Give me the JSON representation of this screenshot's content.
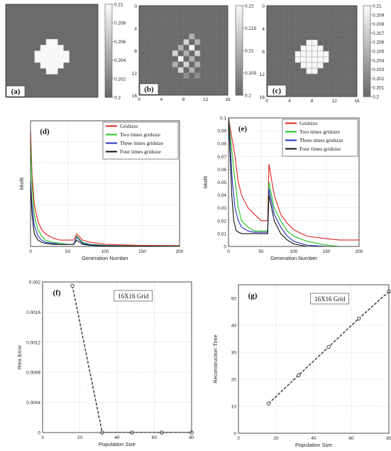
{
  "chart_data": [
    {
      "panel": "(a)",
      "type": "heatmap",
      "cells": 16,
      "xticks": [],
      "yticks": [],
      "colorbar_ticks": [
        "0.21",
        "0.208",
        "0.206",
        "0.204",
        "0.202",
        "0.2"
      ],
      "background_value": 0.2,
      "anomaly_value": 0.21,
      "anomaly_cells": [
        [
          6,
          7
        ],
        [
          6,
          8
        ],
        [
          7,
          6
        ],
        [
          7,
          7
        ],
        [
          7,
          8
        ],
        [
          7,
          9
        ],
        [
          8,
          5
        ],
        [
          8,
          6
        ],
        [
          8,
          7
        ],
        [
          8,
          8
        ],
        [
          8,
          9
        ],
        [
          8,
          10
        ],
        [
          9,
          5
        ],
        [
          9,
          6
        ],
        [
          9,
          7
        ],
        [
          9,
          8
        ],
        [
          9,
          9
        ],
        [
          9,
          10
        ],
        [
          10,
          6
        ],
        [
          10,
          7
        ],
        [
          10,
          8
        ],
        [
          10,
          9
        ],
        [
          11,
          7
        ],
        [
          11,
          8
        ]
      ]
    },
    {
      "panel": "(b)",
      "type": "heatmap",
      "cells": 16,
      "xticks": [
        "0",
        "4",
        "8",
        "12",
        "16"
      ],
      "yticks": [
        "0",
        "4",
        "8",
        "12",
        "16"
      ],
      "colorbar_ticks": [
        "0.22",
        "0.215",
        "0.21",
        "0.205",
        "0.2"
      ],
      "background_value": 0.2,
      "anomaly_cells": [
        [
          5,
          9,
          0.21
        ],
        [
          6,
          8,
          0.215
        ],
        [
          6,
          10,
          0.21
        ],
        [
          7,
          7,
          0.21
        ],
        [
          7,
          9,
          0.22
        ],
        [
          8,
          6,
          0.215
        ],
        [
          8,
          8,
          0.21
        ],
        [
          8,
          10,
          0.215
        ],
        [
          9,
          7,
          0.22
        ],
        [
          9,
          9,
          0.21
        ],
        [
          10,
          6,
          0.21
        ],
        [
          10,
          8,
          0.215
        ],
        [
          10,
          10,
          0.21
        ],
        [
          11,
          7,
          0.215
        ],
        [
          11,
          9,
          0.21
        ],
        [
          12,
          8,
          0.205
        ],
        [
          12,
          10,
          0.205
        ]
      ]
    },
    {
      "panel": "(c)",
      "type": "heatmap",
      "cells": 16,
      "xticks": [
        "0",
        "4",
        "8",
        "12",
        "16"
      ],
      "yticks": [
        "0",
        "4",
        "8",
        "12",
        "16"
      ],
      "colorbar_ticks": [
        "0.21",
        "0.209",
        "0.208",
        "0.207",
        "0.206",
        "0.205",
        "0.204",
        "0.203",
        "0.202",
        "0.201",
        "0.2"
      ],
      "background_value": 0.2,
      "anomaly_value": 0.21,
      "anomaly_cells": [
        [
          6,
          7
        ],
        [
          6,
          8
        ],
        [
          7,
          6
        ],
        [
          7,
          7
        ],
        [
          7,
          8
        ],
        [
          7,
          9
        ],
        [
          8,
          5
        ],
        [
          8,
          6
        ],
        [
          8,
          7
        ],
        [
          8,
          8
        ],
        [
          8,
          9
        ],
        [
          8,
          10
        ],
        [
          9,
          5
        ],
        [
          9,
          6
        ],
        [
          9,
          7
        ],
        [
          9,
          8
        ],
        [
          9,
          9
        ],
        [
          9,
          10
        ],
        [
          10,
          6
        ],
        [
          10,
          7
        ],
        [
          10,
          8
        ],
        [
          10,
          9
        ],
        [
          11,
          7
        ],
        [
          11,
          8
        ]
      ]
    },
    {
      "panel": "(d)",
      "type": "line",
      "xlabel": "Generation Number",
      "ylabel": "Misfit",
      "xlim": [
        0,
        200
      ],
      "ylim": [
        0,
        0.6
      ],
      "xticks": [
        "0",
        "50",
        "100",
        "150",
        "200"
      ],
      "yticks": [],
      "grid": true,
      "legend_position": "top-right",
      "series": [
        {
          "name": "Gridsize",
          "color": "#e02020",
          "x": [
            0,
            2,
            5,
            10,
            15,
            20,
            30,
            40,
            50,
            58,
            62,
            70,
            80,
            100,
            150,
            200
          ],
          "y": [
            0.55,
            0.35,
            0.2,
            0.12,
            0.08,
            0.06,
            0.04,
            0.03,
            0.03,
            0.03,
            0.06,
            0.03,
            0.02,
            0.01,
            0.005,
            0.004
          ]
        },
        {
          "name": "Two times gridsize",
          "color": "#20c020",
          "x": [
            0,
            2,
            5,
            10,
            15,
            20,
            30,
            40,
            50,
            58,
            62,
            70,
            80,
            100,
            150,
            200
          ],
          "y": [
            0.5,
            0.3,
            0.15,
            0.08,
            0.05,
            0.03,
            0.02,
            0.015,
            0.01,
            0.01,
            0.05,
            0.02,
            0.01,
            0.005,
            0.002,
            0.001
          ]
        },
        {
          "name": "Three times gridsize",
          "color": "#2030c0",
          "x": [
            0,
            2,
            5,
            10,
            15,
            20,
            30,
            40,
            50,
            58,
            62,
            70,
            80,
            100,
            150,
            200
          ],
          "y": [
            0.32,
            0.2,
            0.1,
            0.05,
            0.03,
            0.02,
            0.015,
            0.01,
            0.01,
            0.01,
            0.045,
            0.015,
            0.008,
            0.003,
            0.001,
            0.0
          ]
        },
        {
          "name": "Four times gridsize",
          "color": "#111111",
          "x": [
            0,
            2,
            5,
            10,
            15,
            20,
            30,
            40,
            50,
            58,
            62,
            70,
            80,
            100,
            150,
            200
          ],
          "y": [
            0.3,
            0.15,
            0.06,
            0.03,
            0.02,
            0.015,
            0.01,
            0.01,
            0.01,
            0.01,
            0.03,
            0.01,
            0.005,
            0.002,
            0.001,
            0.0
          ]
        }
      ]
    },
    {
      "panel": "(e)",
      "type": "line",
      "xlabel": "Generation Number",
      "ylabel": "Misfit",
      "xlim": [
        0,
        200
      ],
      "ylim": [
        0,
        0.1
      ],
      "xticks": [
        "0",
        "50",
        "100",
        "150",
        "200"
      ],
      "yticks": [
        "0",
        "0.01",
        "0.02",
        "0.03",
        "0.04",
        "0.05",
        "0.06",
        "0.07",
        "0.08",
        "0.09",
        "0.1"
      ],
      "grid": true,
      "legend_position": "top-right",
      "series": [
        {
          "name": "Gridsize",
          "color": "#e02020",
          "x": [
            0,
            10,
            15,
            20,
            30,
            40,
            50,
            58,
            60,
            62,
            70,
            80,
            90,
            100,
            120,
            150,
            170,
            200
          ],
          "y": [
            0.1,
            0.07,
            0.05,
            0.04,
            0.03,
            0.025,
            0.02,
            0.02,
            0.02,
            0.064,
            0.04,
            0.025,
            0.018,
            0.013,
            0.008,
            0.006,
            0.005,
            0.005
          ]
        },
        {
          "name": "Two times gridsize",
          "color": "#20c020",
          "x": [
            0,
            8,
            15,
            20,
            30,
            40,
            50,
            58,
            60,
            62,
            70,
            80,
            90,
            100,
            120,
            150,
            170
          ],
          "y": [
            0.1,
            0.06,
            0.03,
            0.02,
            0.015,
            0.012,
            0.012,
            0.012,
            0.012,
            0.05,
            0.03,
            0.02,
            0.012,
            0.008,
            0.004,
            0.001,
            0.0
          ]
        },
        {
          "name": "Three times gridsize",
          "color": "#2030c0",
          "x": [
            0,
            6,
            10,
            15,
            20,
            30,
            40,
            50,
            58,
            60,
            62,
            70,
            80,
            90,
            100,
            120,
            150
          ],
          "y": [
            0.1,
            0.05,
            0.03,
            0.02,
            0.015,
            0.012,
            0.011,
            0.011,
            0.011,
            0.011,
            0.045,
            0.025,
            0.015,
            0.008,
            0.004,
            0.001,
            0.0
          ]
        },
        {
          "name": "Four times gridsize",
          "color": "#111111",
          "x": [
            0,
            5,
            8,
            12,
            20,
            30,
            40,
            50,
            58,
            60,
            62,
            70,
            80,
            90,
            100,
            120,
            140
          ],
          "y": [
            0.1,
            0.04,
            0.02,
            0.012,
            0.01,
            0.01,
            0.01,
            0.01,
            0.01,
            0.01,
            0.04,
            0.02,
            0.01,
            0.005,
            0.002,
            0.0,
            0.0
          ]
        }
      ]
    },
    {
      "panel": "(f)",
      "type": "line",
      "xlabel": "Population Size",
      "ylabel": "Rms Error",
      "annotation": "16X16 Grid",
      "xlim": [
        0,
        80
      ],
      "ylim": [
        0,
        0.002
      ],
      "xticks": [
        "0",
        "20",
        "40",
        "60",
        "80"
      ],
      "yticks": [
        "0",
        "0.0004",
        "0.0008",
        "0.0012",
        "0.0016",
        "0.002"
      ],
      "grid": true,
      "series": [
        {
          "color": "#333333",
          "x": [
            16,
            32,
            48,
            64,
            80
          ],
          "y": [
            0.00195,
            0.0,
            0.0,
            0.0,
            0.0
          ]
        }
      ]
    },
    {
      "panel": "(g)",
      "type": "line",
      "xlabel": "Population Size",
      "ylabel": "Reconstruction Time",
      "annotation": "16X16 Grid",
      "xlim": [
        0,
        80
      ],
      "ylim": [
        0,
        55
      ],
      "xticks": [
        "0",
        "20",
        "40",
        "60",
        "80"
      ],
      "yticks": [
        "0",
        "10",
        "20",
        "30",
        "40",
        "50"
      ],
      "grid": true,
      "series": [
        {
          "color": "#333333",
          "x": [
            16,
            32,
            48,
            64,
            80
          ],
          "y": [
            11,
            21.5,
            32,
            42.5,
            52.5
          ]
        }
      ]
    }
  ]
}
